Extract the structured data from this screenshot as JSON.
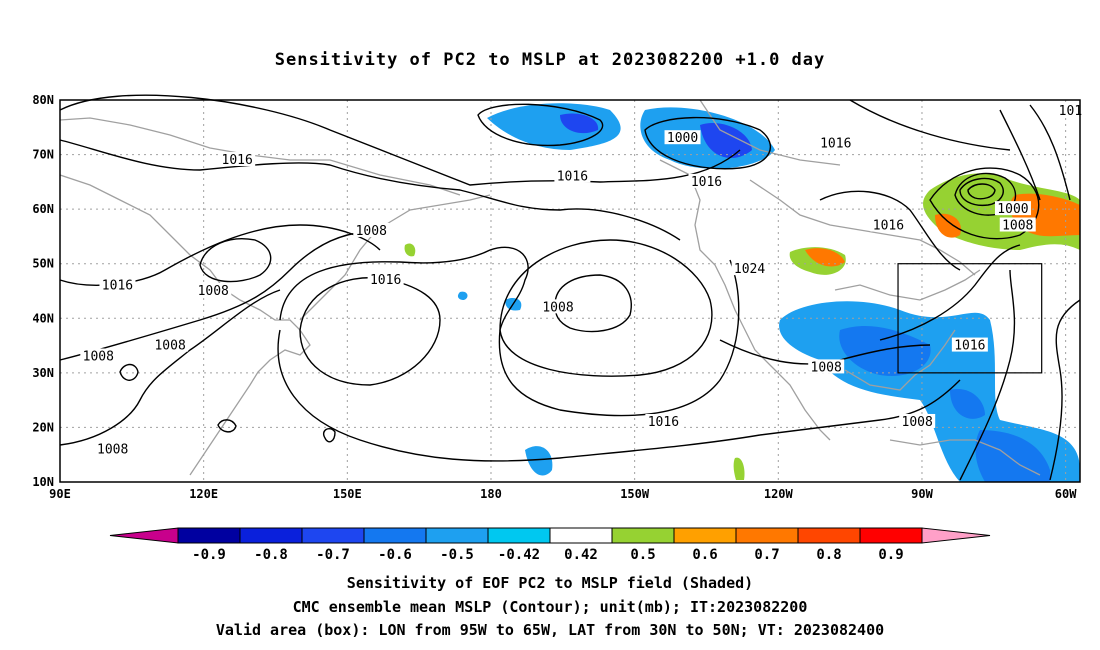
{
  "title": "Sensitivity of PC2 to MSLP at 2023082200 +1.0 day",
  "lat_labels": [
    "80N",
    "70N",
    "60N",
    "50N",
    "40N",
    "30N",
    "20N",
    "10N"
  ],
  "lon_labels": [
    "90E",
    "120E",
    "150E",
    "180",
    "150W",
    "120W",
    "90W",
    "60W"
  ],
  "map_extent": {
    "lon_min": 90,
    "lon_max": 303,
    "lat_min": 10,
    "lat_max": 80
  },
  "valid_box": {
    "lon_from": "95W",
    "lon_to": "65W",
    "lat_from": "30N",
    "lat_to": "50N"
  },
  "contour_labels": [
    {
      "text": "1000",
      "lon": 220,
      "lat": 73
    },
    {
      "text": "1016",
      "lon": 252,
      "lat": 72
    },
    {
      "text": "101",
      "lon": 301,
      "lat": 78
    },
    {
      "text": "1016",
      "lon": 127,
      "lat": 69
    },
    {
      "text": "1016",
      "lon": 197,
      "lat": 66
    },
    {
      "text": "1016",
      "lon": 225,
      "lat": 65
    },
    {
      "text": "1000",
      "lon": 289,
      "lat": 60
    },
    {
      "text": "1008",
      "lon": 290,
      "lat": 57
    },
    {
      "text": "1016",
      "lon": 263,
      "lat": 57
    },
    {
      "text": "1008",
      "lon": 155,
      "lat": 56
    },
    {
      "text": "1024",
      "lon": 234,
      "lat": 49
    },
    {
      "text": "1016",
      "lon": 102,
      "lat": 46
    },
    {
      "text": "1008",
      "lon": 122,
      "lat": 45
    },
    {
      "text": "1016",
      "lon": 158,
      "lat": 47
    },
    {
      "text": "1008",
      "lon": 194,
      "lat": 42
    },
    {
      "text": "1008",
      "lon": 113,
      "lat": 35
    },
    {
      "text": "1008",
      "lon": 98,
      "lat": 33
    },
    {
      "text": "1016",
      "lon": 280,
      "lat": 35
    },
    {
      "text": "1008",
      "lon": 250,
      "lat": 31
    },
    {
      "text": "1016",
      "lon": 216,
      "lat": 21
    },
    {
      "text": "1008",
      "lon": 269,
      "lat": 21
    },
    {
      "text": "1008",
      "lon": 101,
      "lat": 16
    }
  ],
  "colorbar": {
    "labels": [
      "-0.9",
      "-0.8",
      "-0.7",
      "-0.6",
      "-0.5",
      "-0.42",
      "0.42",
      "0.5",
      "0.6",
      "0.7",
      "0.8",
      "0.9"
    ],
    "colors": [
      "#0000a0",
      "#0a20dc",
      "#1e46f0",
      "#1478f0",
      "#1ea0f0",
      "#00c8f0",
      "#ffffff",
      "#96d232",
      "#ffa000",
      "#ff7800",
      "#ff4600",
      "#ff0000"
    ],
    "under_color": "#c8008c",
    "over_color": "#ffa0c8"
  },
  "captions": [
    "Sensitivity of EOF PC2 to MSLP field (Shaded)",
    "CMC ensemble mean MSLP (Contour); unit(mb); IT:2023082200",
    "Valid area (box): LON from 95W to 65W, LAT from 30N to 50N; VT: 2023082400"
  ]
}
